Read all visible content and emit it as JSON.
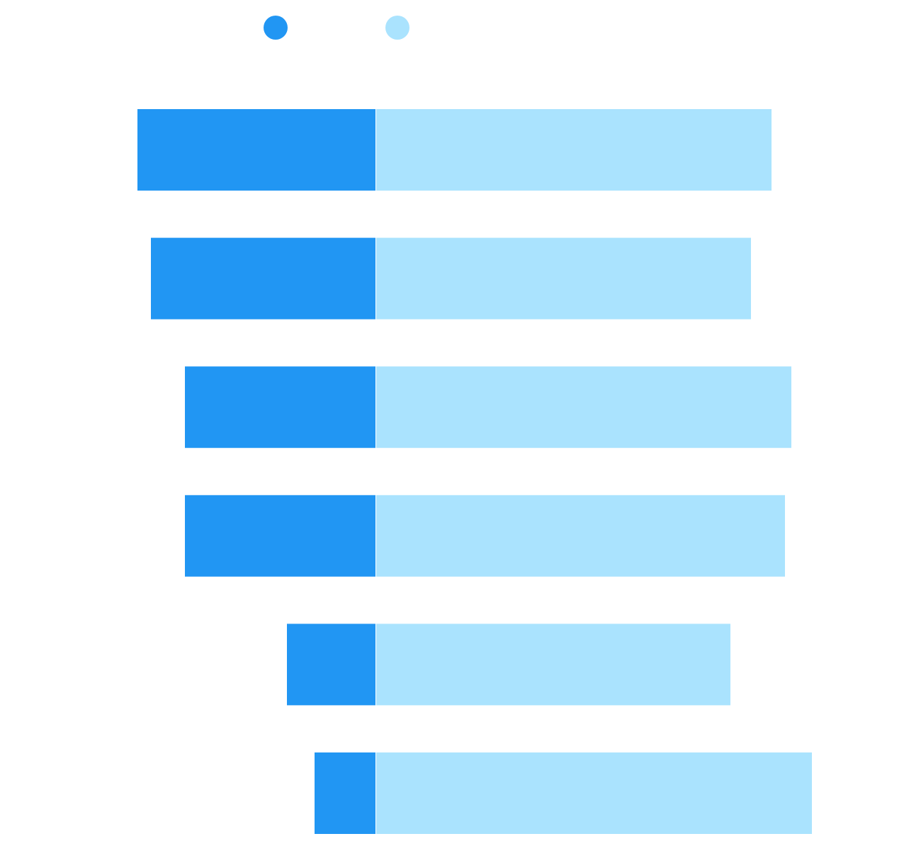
{
  "chart_data": {
    "type": "bar",
    "orientation": "horizontal",
    "stacked": true,
    "categories": [
      null,
      null,
      null,
      null,
      null,
      null
    ],
    "series": [
      {
        "color": "#2196f3",
        "values": [
          -336,
          -317,
          -269,
          -269,
          -125,
          -86
        ]
      },
      {
        "color": "#aae3fe",
        "values": [
          558,
          529,
          586,
          577,
          500,
          615
        ]
      }
    ],
    "grid": false,
    "legend": "top"
  }
}
